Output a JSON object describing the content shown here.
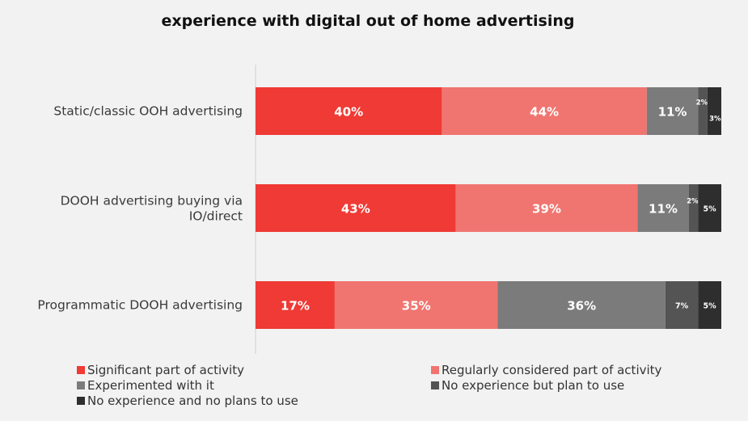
{
  "chart_data": {
    "type": "bar",
    "orientation": "horizontal",
    "stacked": true,
    "title": "experience with digital out of home advertising",
    "xlabel": "",
    "ylabel": "",
    "xlim": [
      0,
      100
    ],
    "grid": false,
    "legend_position": "bottom",
    "categories": [
      "Static/classic OOH advertising",
      "DOOH advertising buying via IO/direct",
      "Programmatic DOOH advertising"
    ],
    "series": [
      {
        "name": "Significant part of activity",
        "color": "#ef3a35",
        "values": [
          40,
          43,
          17
        ],
        "labels": [
          "40%",
          "43%",
          "17%"
        ]
      },
      {
        "name": "Regularly considered part of activity",
        "color": "#f07570",
        "values": [
          44,
          39,
          35
        ],
        "labels": [
          "44%",
          "39%",
          "35%"
        ]
      },
      {
        "name": "Experimented with it",
        "color": "#7b7b7b",
        "values": [
          11,
          11,
          36
        ],
        "labels": [
          "11%",
          "11%",
          "36%"
        ]
      },
      {
        "name": "No experience but plan to use",
        "color": "#545454",
        "values": [
          2,
          2,
          7
        ],
        "labels": [
          "2%",
          "2%",
          "7%"
        ]
      },
      {
        "name": "No experience and no plans to use",
        "color": "#2e2e2e",
        "values": [
          3,
          5,
          5
        ],
        "labels": [
          "3%",
          "5%",
          "5%"
        ]
      }
    ]
  }
}
